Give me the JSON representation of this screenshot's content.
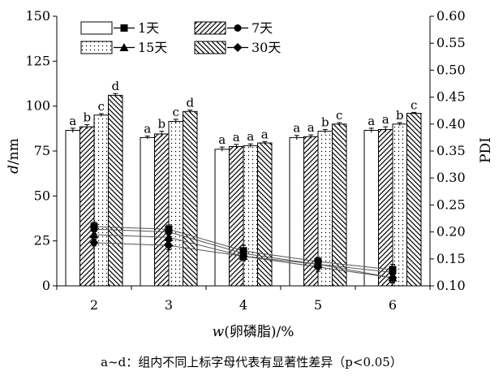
{
  "chart_data": {
    "type": "bar",
    "categories": [
      "2",
      "3",
      "4",
      "5",
      "6"
    ],
    "xlabel": "w(卵磷脂)/%",
    "ylabel": "d/nm",
    "y2label": "PDI",
    "ylim": [
      0,
      150
    ],
    "y2lim": [
      0.1,
      0.6
    ],
    "yticks": [
      "0",
      "25",
      "50",
      "75",
      "100",
      "125",
      "150"
    ],
    "y2ticks": [
      "0.10",
      "0.15",
      "0.20",
      "0.25",
      "0.30",
      "0.35",
      "0.40",
      "0.45",
      "0.50",
      "0.55",
      "0.60"
    ],
    "grid": false,
    "legend_position": "top",
    "series": [
      {
        "name": "1天",
        "pattern": "blank",
        "marker": "square",
        "values": [
          86.5,
          82.5,
          76,
          82.5,
          86.5
        ],
        "errors": [
          1.2,
          0.8,
          1.2,
          1.2,
          1.2
        ],
        "letters": [
          "a",
          "a",
          "a",
          "a",
          "a"
        ],
        "pdi": [
          0.21,
          0.205,
          0.165,
          0.145,
          0.13
        ],
        "pdi_err": [
          0.008,
          0.008,
          0.01,
          0.008,
          0.01
        ]
      },
      {
        "name": "7天",
        "pattern": "diagonal",
        "marker": "circle",
        "values": [
          88.5,
          84.5,
          77.5,
          83,
          87
        ],
        "errors": [
          1.2,
          1.5,
          1.2,
          1,
          1.5
        ],
        "letters": [
          "b",
          "b",
          "a",
          "a",
          "a"
        ],
        "pdi": [
          0.205,
          0.2,
          0.16,
          0.14,
          0.125
        ],
        "pdi_err": [
          0.008,
          0.008,
          0.008,
          0.008,
          0.008
        ]
      },
      {
        "name": "15天",
        "pattern": "dots",
        "marker": "triangle",
        "values": [
          95,
          91.5,
          78,
          86,
          90
        ],
        "errors": [
          0.8,
          1.2,
          1,
          1,
          0.8
        ],
        "letters": [
          "c",
          "c",
          "a",
          "b",
          "b"
        ],
        "pdi": [
          0.195,
          0.19,
          0.155,
          0.14,
          0.115
        ],
        "pdi_err": [
          0.008,
          0.008,
          0.008,
          0.008,
          0.008
        ]
      },
      {
        "name": "30天",
        "pattern": "backdiagonal",
        "marker": "diamond",
        "values": [
          106,
          97,
          79.5,
          90,
          96
        ],
        "errors": [
          1,
          0.8,
          0.8,
          0.8,
          0.5
        ],
        "letters": [
          "d",
          "d",
          "a",
          "c",
          "c"
        ],
        "pdi": [
          0.18,
          0.175,
          0.155,
          0.135,
          0.115
        ],
        "pdi_err": [
          0.006,
          0.008,
          0.008,
          0.008,
          0.01
        ]
      }
    ]
  },
  "caption": "a~d：组内不同上标字母代表有显著性差异（p<0.05）"
}
